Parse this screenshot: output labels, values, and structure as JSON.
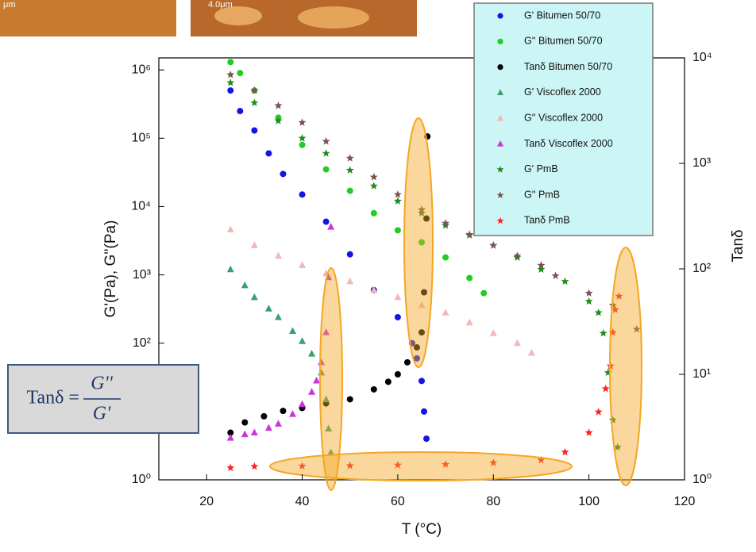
{
  "insets": [
    {
      "scale_label": "μm"
    },
    {
      "scale_label": "4.0μm"
    }
  ],
  "formula": {
    "lhs": "Tanδ =",
    "numerator": "G''",
    "denominator": "G'"
  },
  "chart_data": {
    "type": "scatter",
    "xlabel": "T (°C)",
    "ylabel": "G'(Pa), G''(Pa)",
    "y2label": "Tanδ",
    "xlim": [
      10,
      120
    ],
    "xticks": [
      20,
      40,
      60,
      80,
      100,
      120
    ],
    "ylim": [
      1,
      1500000
    ],
    "ylog": true,
    "yticks": [
      {
        "value": 1,
        "label": "10⁰"
      },
      {
        "value": 100,
        "label": "10²"
      },
      {
        "value": 1000,
        "label": "10³"
      },
      {
        "value": 10000,
        "label": "10⁴"
      },
      {
        "value": 100000,
        "label": "10⁵"
      },
      {
        "value": 1000000,
        "label": "10⁶"
      }
    ],
    "y2lim": [
      1,
      10000
    ],
    "y2log": true,
    "y2ticks": [
      {
        "value": 1,
        "label": "10⁰"
      },
      {
        "value": 10,
        "label": "10¹"
      },
      {
        "value": 100,
        "label": "10²"
      },
      {
        "value": 1000,
        "label": "10³"
      },
      {
        "value": 10000,
        "label": "10⁴"
      }
    ],
    "legend": "top-right",
    "series": [
      {
        "name": "G' Bitumen 50/70",
        "color": "#1414e6",
        "marker": "circle",
        "x": [
          25,
          27,
          30,
          33,
          36,
          40,
          45,
          50,
          55,
          60,
          63,
          64,
          65,
          65.5,
          66
        ],
        "values": [
          500000,
          250000,
          130000,
          60000,
          30000,
          15000,
          6000,
          2000,
          600,
          240,
          100,
          60,
          28,
          10,
          4
        ]
      },
      {
        "name": "G'' Bitumen 50/70",
        "color": "#22cc22",
        "marker": "circle",
        "x": [
          25,
          27,
          30,
          35,
          40,
          45,
          50,
          55,
          60,
          65,
          70,
          75,
          78
        ],
        "values": [
          1300000,
          900000,
          500000,
          200000,
          80000,
          35000,
          17000,
          8000,
          4500,
          3000,
          1800,
          900,
          540
        ]
      },
      {
        "name": "Tanδ Bitumen 50/70",
        "color": "#000000",
        "marker": "circle",
        "axis": "y2",
        "x": [
          25,
          28,
          32,
          36,
          40,
          45,
          50,
          55,
          58,
          60,
          62,
          64,
          65,
          65.5,
          66,
          66.2
        ],
        "values": [
          2.8,
          3.5,
          4,
          4.5,
          4.8,
          5.3,
          5.8,
          7.2,
          8.5,
          10,
          13,
          18,
          25,
          60,
          300,
          1800
        ]
      },
      {
        "name": "G' Viscoflex 2000",
        "color": "#3aa070",
        "marker": "triangle",
        "x": [
          25,
          28,
          30,
          33,
          35,
          38,
          40,
          42,
          44,
          45,
          45.5,
          46
        ],
        "values": [
          1200,
          700,
          470,
          320,
          240,
          150,
          107,
          70,
          37,
          15,
          5.6,
          2.5
        ]
      },
      {
        "name": "G'' Viscoflex 2000",
        "color": "#f4b6b6",
        "marker": "triangle",
        "x": [
          25,
          30,
          35,
          40,
          45,
          50,
          55,
          60,
          65,
          70,
          75,
          80,
          85,
          88
        ],
        "values": [
          4600,
          2700,
          1900,
          1380,
          1050,
          800,
          600,
          470,
          360,
          280,
          200,
          140,
          100,
          72
        ]
      },
      {
        "name": "Tanδ Viscoflex 2000",
        "color": "#cc33dd",
        "marker": "triangle",
        "axis": "y2",
        "x": [
          25,
          28,
          30,
          33,
          35,
          38,
          40,
          42,
          43,
          44,
          45,
          45.5,
          46
        ],
        "values": [
          2.5,
          2.7,
          2.8,
          3.1,
          3.4,
          4.2,
          5.2,
          6.8,
          8.7,
          13,
          25,
          83,
          250
        ]
      },
      {
        "name": "G' PmB",
        "color": "#1e8c1e",
        "marker": "star",
        "x": [
          25,
          30,
          35,
          40,
          45,
          50,
          55,
          60,
          65,
          70,
          75,
          80,
          85,
          90,
          95,
          100,
          102,
          103,
          104,
          105,
          106
        ],
        "values": [
          650000,
          330000,
          180000,
          100000,
          60000,
          34000,
          20000,
          12000,
          8000,
          5300,
          3800,
          2700,
          1800,
          1200,
          800,
          410,
          280,
          140,
          37,
          7.5,
          3
        ]
      },
      {
        "name": "G'' PmB",
        "color": "#7b5252",
        "marker": "star",
        "x": [
          25,
          30,
          35,
          40,
          45,
          50,
          55,
          60,
          65,
          70,
          75,
          80,
          85,
          90,
          93,
          100,
          105,
          110
        ],
        "values": [
          850000,
          500000,
          300000,
          170000,
          90000,
          51000,
          27000,
          15000,
          9000,
          5700,
          3900,
          2700,
          1900,
          1380,
          970,
          540,
          360,
          160
        ]
      },
      {
        "name": "Tanδ PmB",
        "color": "#ff2020",
        "marker": "star",
        "axis": "y2",
        "x": [
          25,
          30,
          40,
          50,
          60,
          70,
          80,
          90,
          95,
          100,
          102,
          103.5,
          104.5,
          105,
          105.5,
          106.3
        ],
        "values": [
          1.3,
          1.34,
          1.35,
          1.36,
          1.38,
          1.4,
          1.45,
          1.54,
          1.83,
          2.8,
          4.4,
          7.3,
          12,
          25,
          41,
          55
        ]
      }
    ]
  }
}
